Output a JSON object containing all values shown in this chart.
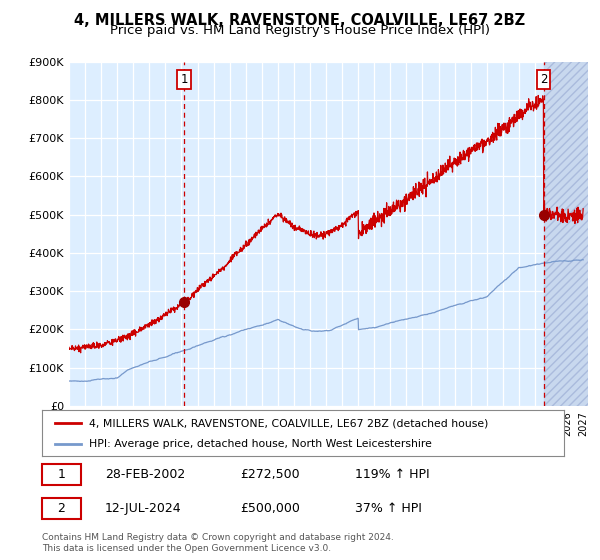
{
  "title": "4, MILLERS WALK, RAVENSTONE, COALVILLE, LE67 2BZ",
  "subtitle": "Price paid vs. HM Land Registry's House Price Index (HPI)",
  "legend_line1": "4, MILLERS WALK, RAVENSTONE, COALVILLE, LE67 2BZ (detached house)",
  "legend_line2": "HPI: Average price, detached house, North West Leicestershire",
  "annotation1_date": "28-FEB-2002",
  "annotation1_price": "£272,500",
  "annotation1_hpi": "119% ↑ HPI",
  "annotation2_date": "12-JUL-2024",
  "annotation2_price": "£500,000",
  "annotation2_hpi": "37% ↑ HPI",
  "footer": "Contains HM Land Registry data © Crown copyright and database right 2024.\nThis data is licensed under the Open Government Licence v3.0.",
  "red_color": "#cc0000",
  "blue_color": "#7799cc",
  "bg_color": "#ddeeff",
  "title_fontsize": 10.5,
  "subtitle_fontsize": 9.5,
  "ylim": [
    0,
    900000
  ],
  "yticks": [
    0,
    100000,
    200000,
    300000,
    400000,
    500000,
    600000,
    700000,
    800000,
    900000
  ],
  "year_start": 1995,
  "year_end": 2027,
  "sale1_year": 2002.167,
  "sale1_value": 272500,
  "sale2_year": 2024.54,
  "sale2_value": 500000
}
